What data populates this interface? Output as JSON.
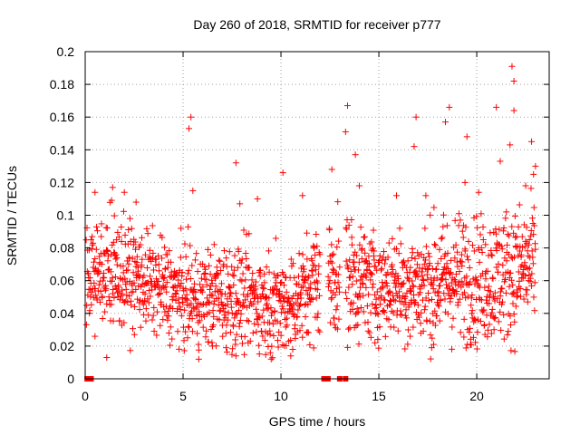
{
  "chart_data": {
    "type": "scatter",
    "title": "Day 260 of 2018, SRMTID for receiver p777",
    "xlabel": "GPS time / hours",
    "ylabel": "SRMTID / TECUs",
    "xlim": [
      0,
      23.7
    ],
    "ylim": [
      0,
      0.2
    ],
    "xticks": [
      0,
      5,
      10,
      15,
      20
    ],
    "xtick_labels": [
      "0",
      "5",
      "10",
      "15",
      "20"
    ],
    "yticks": [
      0,
      0.02,
      0.04,
      0.06,
      0.08,
      0.1,
      0.12,
      0.14,
      0.16,
      0.18,
      0.2
    ],
    "ytick_labels": [
      "0",
      "0.02",
      "0.04",
      "0.06",
      "0.08",
      "0.1",
      "0.12",
      "0.14",
      "0.16",
      "0.18",
      "0.2"
    ],
    "grid": true,
    "series_color": "#ff0000",
    "marker": "+",
    "zero_markers": [
      0.1,
      0.2,
      0.3,
      12.2,
      12.4,
      13.0,
      13.3
    ],
    "outliers": [
      {
        "x": 21.8,
        "y": 0.191
      },
      {
        "x": 21.9,
        "y": 0.182
      },
      {
        "x": 13.4,
        "y": 0.167
      },
      {
        "x": 18.6,
        "y": 0.166
      },
      {
        "x": 21.9,
        "y": 0.164
      },
      {
        "x": 21.0,
        "y": 0.166
      },
      {
        "x": 5.4,
        "y": 0.16
      },
      {
        "x": 5.3,
        "y": 0.153
      },
      {
        "x": 16.9,
        "y": 0.16
      },
      {
        "x": 18.4,
        "y": 0.157
      },
      {
        "x": 13.3,
        "y": 0.151
      },
      {
        "x": 19.5,
        "y": 0.148
      },
      {
        "x": 22.8,
        "y": 0.145
      },
      {
        "x": 21.7,
        "y": 0.143
      },
      {
        "x": 16.8,
        "y": 0.142
      },
      {
        "x": 13.8,
        "y": 0.137
      },
      {
        "x": 21.2,
        "y": 0.133
      },
      {
        "x": 7.7,
        "y": 0.132
      },
      {
        "x": 23.0,
        "y": 0.13
      },
      {
        "x": 22.9,
        "y": 0.125
      },
      {
        "x": 12.6,
        "y": 0.128
      },
      {
        "x": 10.1,
        "y": 0.126
      },
      {
        "x": 2.0,
        "y": 0.114
      },
      {
        "x": 1.4,
        "y": 0.117
      },
      {
        "x": 0.5,
        "y": 0.114
      },
      {
        "x": 5.5,
        "y": 0.115
      },
      {
        "x": 11.1,
        "y": 0.112
      },
      {
        "x": 14.0,
        "y": 0.118
      },
      {
        "x": 15.9,
        "y": 0.112
      },
      {
        "x": 17.4,
        "y": 0.112
      },
      {
        "x": 19.4,
        "y": 0.12
      },
      {
        "x": 22.5,
        "y": 0.118
      },
      {
        "x": 2.6,
        "y": 0.108
      },
      {
        "x": 7.9,
        "y": 0.107
      },
      {
        "x": 8.8,
        "y": 0.11
      },
      {
        "x": 20.1,
        "y": 0.114
      },
      {
        "x": 1.1,
        "y": 0.013
      },
      {
        "x": 5.8,
        "y": 0.012
      },
      {
        "x": 7.7,
        "y": 0.014
      },
      {
        "x": 10.5,
        "y": 0.014
      },
      {
        "x": 10.6,
        "y": 0.018
      },
      {
        "x": 17.7,
        "y": 0.019
      },
      {
        "x": 17.8,
        "y": 0.021
      },
      {
        "x": 14.8,
        "y": 0.022
      },
      {
        "x": 7.2,
        "y": 0.019
      },
      {
        "x": 6.5,
        "y": 0.02
      },
      {
        "x": 0.5,
        "y": 0.026
      },
      {
        "x": 16.6,
        "y": 0.026
      }
    ],
    "bulk_profile": {
      "description": "dense band of samples roughly every 0.015 h",
      "x": [
        0.0,
        1.0,
        2.0,
        3.0,
        4.0,
        5.0,
        6.0,
        7.0,
        8.0,
        9.0,
        10.0,
        11.0,
        12.0,
        13.0,
        14.0,
        15.0,
        16.0,
        17.0,
        18.0,
        19.0,
        20.0,
        21.0,
        22.0,
        23.0
      ],
      "mean": [
        0.066,
        0.068,
        0.064,
        0.06,
        0.055,
        0.05,
        0.049,
        0.051,
        0.05,
        0.047,
        0.045,
        0.05,
        0.062,
        0.063,
        0.06,
        0.057,
        0.058,
        0.057,
        0.06,
        0.062,
        0.06,
        0.062,
        0.066,
        0.07
      ],
      "spread": [
        0.015,
        0.017,
        0.017,
        0.016,
        0.016,
        0.016,
        0.016,
        0.017,
        0.017,
        0.016,
        0.017,
        0.016,
        0.02,
        0.021,
        0.02,
        0.017,
        0.018,
        0.019,
        0.021,
        0.022,
        0.021,
        0.022,
        0.022,
        0.021
      ],
      "gaps": [
        [
          12.0,
          12.4
        ],
        [
          13.0,
          13.3
        ]
      ]
    }
  }
}
